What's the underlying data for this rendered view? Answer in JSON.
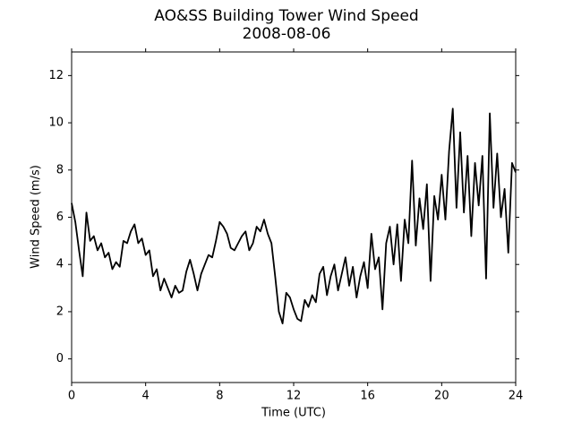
{
  "chart_data": {
    "type": "line",
    "title": "AO&SS Building Tower Wind Speed",
    "subtitle": "2008-08-06",
    "xlabel": "Time (UTC)",
    "ylabel": "Wind Speed (m/s)",
    "x": [
      0,
      0.2,
      0.4,
      0.6,
      0.8,
      1,
      1.2,
      1.4,
      1.6,
      1.8,
      2,
      2.2,
      2.4,
      2.6,
      2.8,
      3,
      3.2,
      3.4,
      3.6,
      3.8,
      4,
      4.2,
      4.4,
      4.6,
      4.8,
      5,
      5.2,
      5.4,
      5.6,
      5.8,
      6,
      6.2,
      6.4,
      6.6,
      6.8,
      7,
      7.2,
      7.4,
      7.6,
      7.8,
      8,
      8.2,
      8.4,
      8.6,
      8.8,
      9,
      9.2,
      9.4,
      9.6,
      9.8,
      10,
      10.2,
      10.4,
      10.6,
      10.8,
      11,
      11.2,
      11.4,
      11.6,
      11.8,
      12,
      12.2,
      12.4,
      12.6,
      12.8,
      13,
      13.2,
      13.4,
      13.6,
      13.8,
      14,
      14.2,
      14.4,
      14.6,
      14.8,
      15,
      15.2,
      15.4,
      15.6,
      15.8,
      16,
      16.2,
      16.4,
      16.6,
      16.8,
      17,
      17.2,
      17.4,
      17.6,
      17.8,
      18,
      18.2,
      18.4,
      18.6,
      18.8,
      19,
      19.2,
      19.4,
      19.6,
      19.8,
      20,
      20.2,
      20.4,
      20.6,
      20.8,
      21,
      21.2,
      21.4,
      21.6,
      21.8,
      22,
      22.2,
      22.4,
      22.6,
      22.8,
      23,
      23.2,
      23.4,
      23.6,
      23.8,
      24
    ],
    "values": [
      6.6,
      5.8,
      4.6,
      3.5,
      6.2,
      5.0,
      5.2,
      4.6,
      4.9,
      4.3,
      4.5,
      3.8,
      4.1,
      3.9,
      5.0,
      4.9,
      5.4,
      5.7,
      4.9,
      5.1,
      4.4,
      4.6,
      3.5,
      3.8,
      2.9,
      3.4,
      3.0,
      2.6,
      3.1,
      2.8,
      2.9,
      3.7,
      4.2,
      3.6,
      2.9,
      3.6,
      4.0,
      4.4,
      4.3,
      5.0,
      5.8,
      5.6,
      5.3,
      4.7,
      4.6,
      4.9,
      5.2,
      5.4,
      4.6,
      4.9,
      5.6,
      5.4,
      5.9,
      5.3,
      4.9,
      3.5,
      2.0,
      1.5,
      2.8,
      2.6,
      2.1,
      1.7,
      1.6,
      2.5,
      2.2,
      2.7,
      2.4,
      3.6,
      3.9,
      2.7,
      3.5,
      4.0,
      2.9,
      3.6,
      4.3,
      3.1,
      3.9,
      2.6,
      3.5,
      4.1,
      3.0,
      5.3,
      3.8,
      4.3,
      2.1,
      4.9,
      5.6,
      4.0,
      5.7,
      3.3,
      5.9,
      4.9,
      8.4,
      4.8,
      6.8,
      5.5,
      7.4,
      3.3,
      6.9,
      5.9,
      7.8,
      5.9,
      8.8,
      10.6,
      6.4,
      9.6,
      6.2,
      8.6,
      5.2,
      8.3,
      6.5,
      8.6,
      3.4,
      10.4,
      6.4,
      8.7,
      6.0,
      7.2,
      4.5,
      8.3,
      7.9
    ],
    "color": "#000000",
    "xlim": [
      0,
      24
    ],
    "xticks": [
      0,
      4,
      8,
      12,
      16,
      20,
      24
    ],
    "ylim": [
      -1,
      13
    ],
    "yticks": [
      0,
      2,
      4,
      6,
      8,
      10,
      12
    ]
  }
}
